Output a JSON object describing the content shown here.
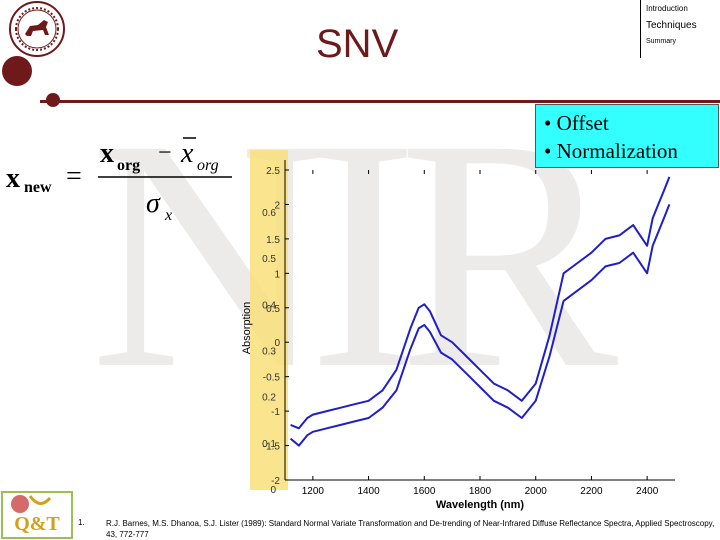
{
  "slide": {
    "title": "SNV",
    "watermark": "NIR",
    "nav": {
      "intro": "Introduction",
      "techniques": "Techniques",
      "summary": "Summary"
    },
    "callout": [
      "• Offset",
      "• Normalization"
    ],
    "formula": {
      "lhs": "x",
      "lhs_sub": "new",
      "num_a": "x",
      "num_a_sub": "org",
      "num_b": "x",
      "num_b_sub": "org",
      "den": "σ",
      "den_sub": "x",
      "minus": "−",
      "equals": "="
    },
    "footnote_num": "1.",
    "footnote": "R.J. Barnes, M.S. Dhanoa, S.J. Lister (1989): Standard Normal Variate Transformation and De-trending of Near-Infrared Diffuse Reflectance Spectra, Applied Spectroscopy, 43, 772-777",
    "logo_text": "Q&T",
    "colors": {
      "brand": "#6e1a1a",
      "callout_bg": "#33ffff",
      "spectrum": "#1f1fc8",
      "axis_highlight": "#f9e07a"
    }
  },
  "chart_data": {
    "type": "line",
    "xlabel": "Wavelength (nm)",
    "ylabel": "Absorption",
    "xlim": [
      1100,
      2500
    ],
    "x_ticks": [
      1200,
      1400,
      1600,
      1800,
      2000,
      2200,
      2400
    ],
    "ylim_left_outer": [
      -2,
      2.5
    ],
    "y_ticks_outer": [
      "2.5",
      "2",
      "1.5",
      "1",
      "0.5",
      "0",
      "-0.5",
      "-1",
      "-1.5",
      "-2"
    ],
    "y_ticks_inner": [
      "0.6",
      "0.5",
      "0.4",
      "0.3",
      "0.2",
      "0.1",
      "0"
    ],
    "series": [
      {
        "x": [
          1120,
          1150,
          1180,
          1200,
          1250,
          1300,
          1350,
          1400,
          1450,
          1500,
          1550,
          1580,
          1600,
          1620,
          1660,
          1700,
          1750,
          1800,
          1850,
          1900,
          1950,
          2000,
          2050,
          2100,
          2150,
          2200,
          2250,
          2300,
          2350,
          2400,
          2420,
          2440,
          2460,
          2480
        ],
        "y": [
          -1.2,
          -1.25,
          -1.1,
          -1.05,
          -1.0,
          -0.95,
          -0.9,
          -0.85,
          -0.7,
          -0.4,
          0.2,
          0.5,
          0.55,
          0.45,
          0.1,
          0.0,
          -0.2,
          -0.4,
          -0.6,
          -0.7,
          -0.85,
          -0.6,
          0.1,
          1.0,
          1.15,
          1.3,
          1.5,
          1.55,
          1.7,
          1.4,
          1.8,
          2.0,
          2.2,
          2.4
        ]
      },
      {
        "x": [
          1120,
          1150,
          1180,
          1200,
          1250,
          1300,
          1350,
          1400,
          1450,
          1500,
          1550,
          1580,
          1600,
          1620,
          1660,
          1700,
          1750,
          1800,
          1850,
          1900,
          1950,
          2000,
          2050,
          2100,
          2150,
          2200,
          2250,
          2300,
          2350,
          2400,
          2420,
          2440,
          2460,
          2480
        ],
        "y": [
          -1.4,
          -1.5,
          -1.35,
          -1.3,
          -1.25,
          -1.2,
          -1.15,
          -1.1,
          -0.95,
          -0.7,
          -0.1,
          0.2,
          0.25,
          0.15,
          -0.15,
          -0.25,
          -0.45,
          -0.65,
          -0.85,
          -0.95,
          -1.1,
          -0.85,
          -0.2,
          0.6,
          0.75,
          0.9,
          1.1,
          1.15,
          1.3,
          1.0,
          1.4,
          1.6,
          1.8,
          2.0
        ]
      }
    ]
  }
}
